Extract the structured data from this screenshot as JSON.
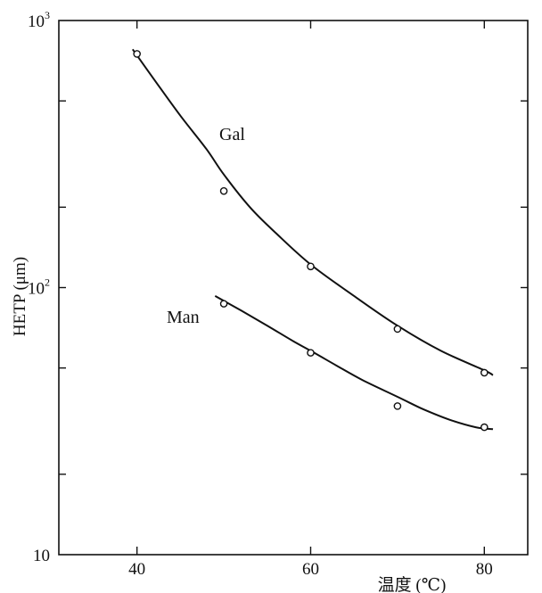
{
  "chart_data": {
    "type": "scatter",
    "xlabel": "温度 (℃)",
    "ylabel": "HETP (μm)",
    "xlim": [
      31,
      85
    ],
    "ylim": [
      10,
      1000
    ],
    "y_scale": "log",
    "grid": false,
    "x_ticks": [
      {
        "value": 40,
        "label": "40"
      },
      {
        "value": 60,
        "label": "60"
      },
      {
        "value": 80,
        "label": "80"
      }
    ],
    "y_ticks": [
      {
        "value": 10,
        "label": "10"
      },
      {
        "value": 100,
        "label": "10²"
      },
      {
        "value": 1000,
        "label": "10³"
      }
    ],
    "series": [
      {
        "name": "Gal",
        "points": [
          [
            40,
            750
          ],
          [
            50,
            230
          ],
          [
            60,
            120
          ],
          [
            70,
            70
          ],
          [
            80,
            48
          ]
        ],
        "curve": [
          [
            39.5,
            780
          ],
          [
            42,
            600
          ],
          [
            45,
            440
          ],
          [
            48,
            330
          ],
          [
            50,
            265
          ],
          [
            53,
            200
          ],
          [
            56,
            160
          ],
          [
            60,
            122
          ],
          [
            65,
            93
          ],
          [
            70,
            72
          ],
          [
            75,
            58
          ],
          [
            80,
            49
          ],
          [
            81,
            47
          ]
        ]
      },
      {
        "name": "Man",
        "points": [
          [
            50,
            87
          ],
          [
            60,
            57
          ],
          [
            70,
            36
          ],
          [
            80,
            30
          ]
        ],
        "curve": [
          [
            49,
            93
          ],
          [
            52,
            82
          ],
          [
            55,
            72
          ],
          [
            58,
            63
          ],
          [
            60,
            58
          ],
          [
            63,
            51
          ],
          [
            66,
            45
          ],
          [
            70,
            39
          ],
          [
            73,
            35
          ],
          [
            76,
            32
          ],
          [
            79,
            30
          ],
          [
            81,
            29.5
          ]
        ]
      }
    ]
  }
}
